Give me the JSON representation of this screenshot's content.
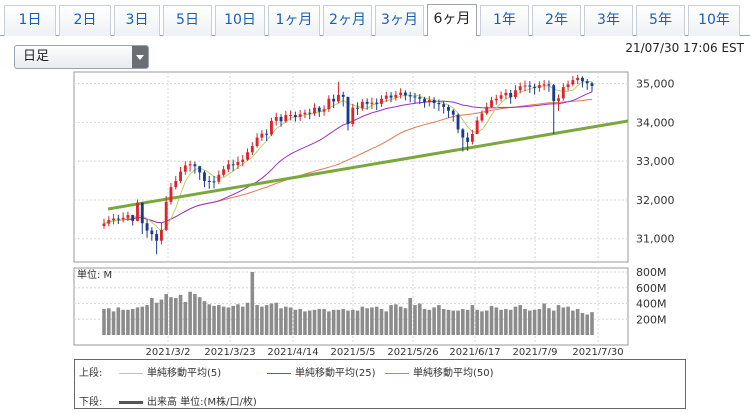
{
  "tabs": [
    "1日",
    "2日",
    "3日",
    "5日",
    "10日",
    "1ヶ月",
    "2ヶ月",
    "3ヶ月",
    "6ヶ月",
    "1年",
    "2年",
    "3年",
    "5年",
    "10年"
  ],
  "active_tab": "6ヶ月",
  "period_select": {
    "value": "日足"
  },
  "timestamp": "21/07/30 17:06 EST",
  "colors": {
    "up": "#d9262b",
    "down": "#1a3a8c",
    "ma5": "#b8d36a",
    "ma25": "#9b30c8",
    "ma50": "#e07b4d",
    "trend": "#7aa83c",
    "volume": "#8c8c8c"
  },
  "legend": {
    "upper_label": "上段:",
    "ma5": "単純移動平均(5)",
    "ma25": "単純移動平均(25)",
    "ma50": "単純移動平均(50)",
    "lower_label": "下段:",
    "volume": "出来高 単位:(M株/口/枚)"
  },
  "chart_data": [
    {
      "type": "candlestick",
      "title": "",
      "ylim": [
        30400,
        35300
      ],
      "y_ticks": [
        "31,000",
        "32,000",
        "33,000",
        "34,000",
        "35,000"
      ],
      "x_ticks": [
        "2021/3/2",
        "2021/3/23",
        "2021/4/14",
        "2021/5/5",
        "2021/5/26",
        "2021/6/17",
        "2021/7/9",
        "2021/7/30"
      ],
      "close": [
        31390,
        31480,
        31520,
        31500,
        31540,
        31610,
        31460,
        31930,
        31400,
        31210,
        31120,
        30950,
        31230,
        31950,
        32330,
        32490,
        32730,
        32890,
        32920,
        32870,
        32710,
        32490,
        32480,
        32470,
        32650,
        32790,
        32920,
        32900,
        32980,
        33040,
        33230,
        33390,
        33610,
        33710,
        33690,
        34040,
        34140,
        34030,
        34190,
        34190,
        34140,
        34210,
        34250,
        34230,
        34380,
        34280,
        34340,
        34610,
        34540,
        34710,
        34660,
        33960,
        34380,
        34360,
        34530,
        34480,
        34510,
        34480,
        34610,
        34690,
        34640,
        34710,
        34770,
        34700,
        34670,
        34650,
        34610,
        34520,
        34580,
        34500,
        34470,
        34400,
        34300,
        34200,
        33820,
        33610,
        33500,
        33700,
        34050,
        34230,
        34400,
        34570,
        34610,
        34700,
        34760,
        34650,
        34830,
        34930,
        34950,
        34920,
        34890,
        34960,
        34980,
        34960,
        34550,
        34620,
        34910,
        34980,
        35090,
        35150,
        35060,
        35010,
        34940
      ],
      "high": [
        31520,
        31580,
        31640,
        31620,
        31680,
        31700,
        31620,
        32010,
        31940,
        31500,
        31300,
        31220,
        31400,
        32100,
        32440,
        32620,
        32850,
        33000,
        33010,
        32990,
        32880,
        32760,
        32620,
        32620,
        32760,
        32880,
        33030,
        33040,
        33120,
        33160,
        33330,
        33490,
        33720,
        33800,
        33820,
        34120,
        34250,
        34210,
        34300,
        34310,
        34280,
        34320,
        34330,
        34350,
        34490,
        34420,
        34440,
        34700,
        34720,
        35050,
        34790,
        34410,
        34480,
        34520,
        34600,
        34620,
        34640,
        34620,
        34700,
        34790,
        34780,
        34810,
        34880,
        34830,
        34790,
        34760,
        34730,
        34660,
        34680,
        34650,
        34590,
        34540,
        34450,
        34340,
        34230,
        33850,
        33740,
        33810,
        34150,
        34310,
        34510,
        34660,
        34710,
        34800,
        34860,
        34840,
        34960,
        35030,
        35080,
        35060,
        35000,
        35060,
        35090,
        35080,
        34990,
        34720,
        35010,
        35080,
        35200,
        35230,
        35190,
        35120,
        35050
      ],
      "low": [
        31260,
        31320,
        31370,
        31380,
        31420,
        31460,
        31340,
        31450,
        31120,
        31030,
        30950,
        30600,
        30850,
        31200,
        31880,
        32270,
        32430,
        32650,
        32730,
        32680,
        32520,
        32330,
        32290,
        32300,
        32410,
        32600,
        32720,
        32740,
        32800,
        32870,
        33010,
        33160,
        33350,
        33520,
        33520,
        33650,
        33920,
        33890,
        33990,
        34050,
        34020,
        34040,
        34110,
        34080,
        34170,
        34140,
        34170,
        34270,
        34370,
        34490,
        34410,
        33790,
        33890,
        34190,
        34300,
        34330,
        34340,
        34320,
        34400,
        34530,
        34520,
        34560,
        34620,
        34570,
        34520,
        34490,
        34470,
        34380,
        34410,
        34350,
        34300,
        34230,
        34120,
        34020,
        33720,
        33250,
        33270,
        33430,
        33720,
        34000,
        34190,
        34360,
        34460,
        34540,
        34600,
        34480,
        34600,
        34750,
        34800,
        34760,
        34720,
        34790,
        34830,
        34790,
        33700,
        34300,
        34560,
        34820,
        34930,
        34990,
        34900,
        34840,
        34790
      ]
    },
    {
      "type": "bar",
      "title": "",
      "ylabel": "単位: M",
      "ylim": [
        0,
        800
      ],
      "y_ticks": [
        "200M",
        "400M",
        "600M",
        "800M"
      ],
      "values": [
        330,
        340,
        300,
        350,
        320,
        320,
        330,
        350,
        360,
        380,
        470,
        410,
        450,
        520,
        480,
        470,
        510,
        420,
        550,
        520,
        480,
        430,
        390,
        370,
        380,
        360,
        350,
        370,
        390,
        360,
        410,
        800,
        380,
        360,
        380,
        400,
        410,
        340,
        360,
        350,
        320,
        330,
        300,
        310,
        320,
        330,
        330,
        300,
        320,
        320,
        330,
        310,
        320,
        310,
        360,
        340,
        350,
        360,
        330,
        300,
        380,
        390,
        360,
        340,
        470,
        380,
        400,
        330,
        320,
        350,
        380,
        330,
        320,
        310,
        310,
        330,
        320,
        380,
        320,
        300,
        310,
        370,
        350,
        320,
        330,
        320,
        360,
        380,
        330,
        310,
        320,
        330,
        400,
        340,
        310,
        380,
        350,
        360,
        310,
        330,
        280,
        260,
        290
      ]
    }
  ]
}
